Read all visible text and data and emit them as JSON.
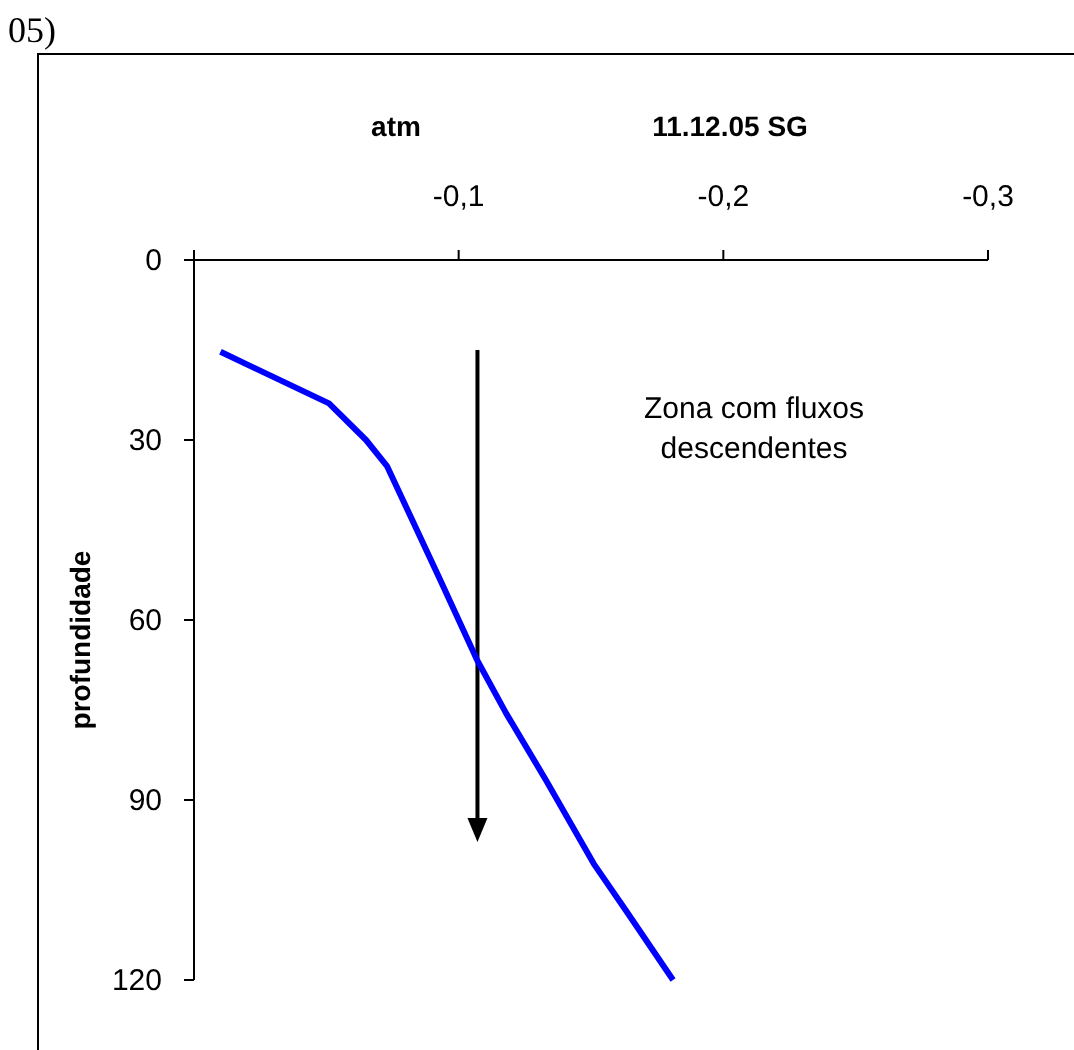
{
  "chart_data": {
    "type": "line",
    "title": "11.12.05 SG",
    "xlabel": "atm",
    "ylabel": "profundidade",
    "annotations": [
      "05)",
      "Zona com fluxos descendentes"
    ],
    "xlim": [
      0,
      -0.3
    ],
    "xticks": [
      {
        "value": 0,
        "label": null
      },
      {
        "value": -0.1,
        "label": "-0,1"
      },
      {
        "value": -0.2,
        "label": "-0,2"
      },
      {
        "value": -0.3,
        "label": "-0,3"
      }
    ],
    "ylim": [
      120,
      0
    ],
    "yticks": [
      0,
      30,
      60,
      90,
      120
    ],
    "grid": false,
    "series": [
      {
        "color": "#0000ff",
        "x": [
          -0.01,
          -0.051,
          -0.065,
          -0.073,
          -0.093,
          -0.107,
          -0.118,
          -0.133,
          -0.151,
          -0.163,
          -0.181
        ],
        "values": [
          15.3,
          23.9,
          30,
          34.4,
          53.3,
          66.7,
          75.6,
          86.7,
          100.6,
          108.3,
          120
        ]
      }
    ]
  }
}
